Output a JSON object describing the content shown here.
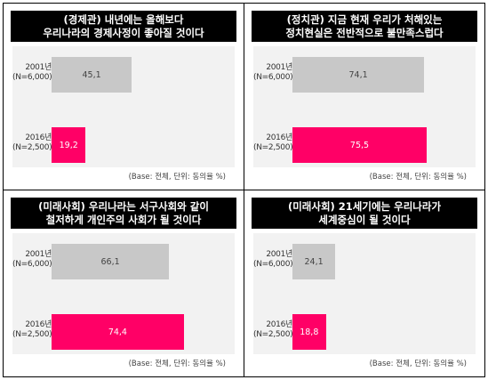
{
  "base_note": "(Base: 전체, 단위: 동의율 %)",
  "colors": {
    "s2001": "#c8c8c8",
    "s2016": "#ff0066",
    "header_bg": "#000000"
  },
  "chart_data": [
    {
      "type": "bar",
      "orientation": "horizontal",
      "title_lines": [
        "(경제관) 내년에는 올해보다",
        "우리나라의 경제사정이 좋아질 것이다"
      ],
      "categories": [
        {
          "year": "2001년",
          "n": "(N=6,000)"
        },
        {
          "year": "2016년",
          "n": "(N=2,500)"
        }
      ],
      "values": [
        45.1,
        19.2
      ],
      "labels": [
        "45,1",
        "19,2"
      ],
      "xlim": [
        0,
        100
      ]
    },
    {
      "type": "bar",
      "orientation": "horizontal",
      "title_lines": [
        "(정치관) 지금 현재 우리가 처해있는",
        "정치현실은 전반적으로 불만족스럽다"
      ],
      "categories": [
        {
          "year": "2001년",
          "n": "(N=6,000)"
        },
        {
          "year": "2016년",
          "n": "(N=2,500)"
        }
      ],
      "values": [
        74.1,
        75.5
      ],
      "labels": [
        "74,1",
        "75,5"
      ],
      "xlim": [
        0,
        100
      ]
    },
    {
      "type": "bar",
      "orientation": "horizontal",
      "title_lines": [
        "(미래사회) 우리나라는 서구사회와 같이",
        "철저하게 개인주의 사회가 될 것이다"
      ],
      "categories": [
        {
          "year": "2001년",
          "n": "(N=6,000)"
        },
        {
          "year": "2016년",
          "n": "(N=2,500)"
        }
      ],
      "values": [
        66.1,
        74.4
      ],
      "labels": [
        "66,1",
        "74,4"
      ],
      "xlim": [
        0,
        100
      ]
    },
    {
      "type": "bar",
      "orientation": "horizontal",
      "title_lines": [
        "(미래사회) 21세기에는 우리나라가",
        "세계중심이 될 것이다"
      ],
      "categories": [
        {
          "year": "2001년",
          "n": "(N=6,000)"
        },
        {
          "year": "2016년",
          "n": "(N=2,500)"
        }
      ],
      "values": [
        24.1,
        18.8
      ],
      "labels": [
        "24,1",
        "18,8"
      ],
      "xlim": [
        0,
        100
      ]
    }
  ]
}
